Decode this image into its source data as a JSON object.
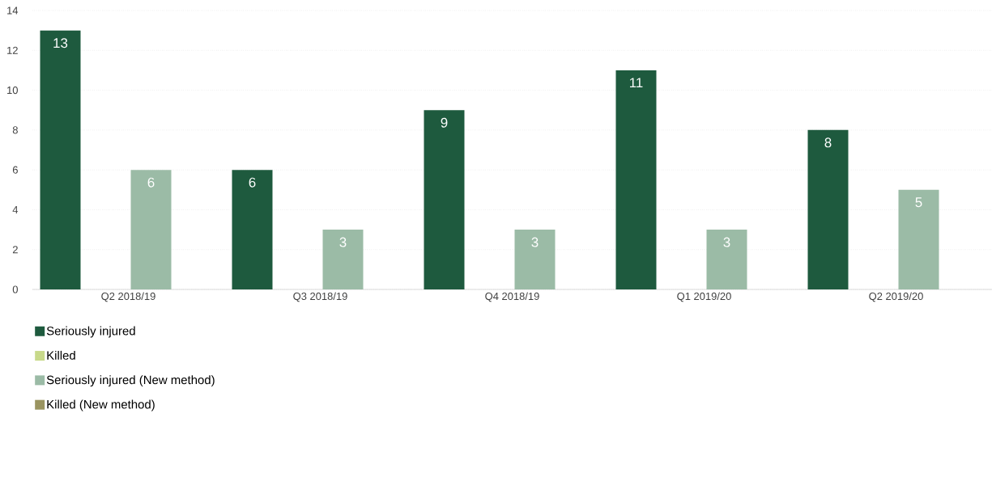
{
  "chart_data": {
    "type": "bar",
    "categories": [
      "Q2 2018/19",
      "Q3 2018/19",
      "Q4 2018/19",
      "Q1 2019/20",
      "Q2 2019/20"
    ],
    "series": [
      {
        "name": "Seriously injured",
        "color": "#1e5a3e",
        "values": [
          13,
          6,
          9,
          11,
          8
        ],
        "value_labels": [
          "13",
          "6",
          "9",
          "11",
          "8"
        ]
      },
      {
        "name": "Killed",
        "color": "#c8d98a",
        "values": [
          0,
          0,
          0,
          0,
          0
        ],
        "value_labels": [
          null,
          null,
          null,
          null,
          null
        ]
      },
      {
        "name": "Seriously injured (New method)",
        "color": "#9bbba6",
        "values": [
          6,
          3,
          3,
          3,
          5
        ],
        "value_labels": [
          "6",
          "3",
          "3",
          "3",
          "5"
        ]
      },
      {
        "name": "Killed (New method)",
        "color": "#9a9460",
        "values": [
          0,
          0,
          0,
          0,
          0
        ],
        "value_labels": [
          null,
          null,
          null,
          null,
          null
        ]
      }
    ],
    "ylim": [
      0,
      14
    ],
    "yticks": [
      0,
      2,
      4,
      6,
      8,
      10,
      12,
      14
    ],
    "grid": "y",
    "legend": "bottom"
  }
}
